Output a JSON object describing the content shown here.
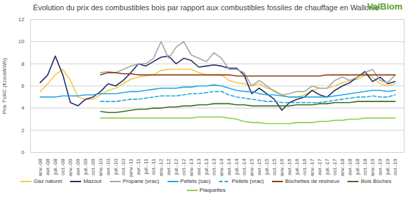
{
  "chart_data": {
    "type": "line",
    "title": "Évolution du prix des combustibles bois par rapport aux combustibles fossiles de chauffage en Wallonie",
    "annotations": [
      "ValBiom"
    ],
    "y_label": "Prix TVAC (€cent/kWh)",
    "categories": [
      "janv.-08",
      "avr.-08",
      "juil.-08",
      "oct.-08",
      "janv.-09",
      "avr.-09",
      "juil.-09",
      "oct.-09",
      "janv.-10",
      "avr.-10",
      "juil.-10",
      "oct.-10",
      "janv.-11",
      "avr.-11",
      "juil.-11",
      "oct.-11",
      "janv.-12",
      "avr.-12",
      "juil.-12",
      "oct.-12",
      "janv.-13",
      "avr.-13",
      "juil.-13",
      "oct.-13",
      "janv.-14",
      "avr.-14",
      "juil.-14",
      "oct.-14",
      "janv.-15",
      "avr.-15",
      "juil.-15",
      "oct.-15",
      "janv.-16",
      "avr.-16",
      "juil.-16",
      "oct.-16",
      "janv.-17",
      "avr.-17",
      "juil.-17",
      "oct.-17",
      "janv.-18",
      "avr.-18",
      "juil.-18",
      "oct.-18",
      "janv.-19",
      "avr.-19",
      "juil.-19",
      "oct.-19"
    ],
    "ylim": [
      0,
      12
    ],
    "yticks": [
      0,
      2,
      4,
      6,
      8,
      10,
      12
    ],
    "grid": true,
    "legend": "bottom",
    "series": [
      {
        "name": "Gaz naturel",
        "color": "#f5c842",
        "line_style": "solid",
        "values": [
          5.5,
          6.2,
          7.0,
          7.5,
          6.5,
          5.0,
          4.8,
          4.8,
          5.2,
          5.6,
          5.8,
          6.2,
          6.6,
          6.8,
          6.9,
          7.0,
          7.4,
          7.5,
          7.5,
          7.5,
          7.5,
          7.2,
          7.0,
          7.0,
          7.0,
          6.5,
          6.3,
          6.2,
          6.0,
          6.2,
          5.8,
          5.6,
          5.2,
          5.0,
          5.0,
          5.2,
          5.6,
          5.8,
          5.8,
          6.0,
          6.3,
          6.5,
          6.6,
          7.0,
          6.8,
          6.2,
          6.0,
          6.2
        ]
      },
      {
        "name": "Mazout",
        "color": "#1f2d6b",
        "line_style": "solid",
        "values": [
          6.3,
          7.0,
          8.7,
          7.0,
          4.5,
          4.2,
          4.8,
          5.0,
          5.5,
          6.2,
          6.0,
          6.5,
          7.2,
          8.0,
          7.8,
          8.2,
          8.6,
          8.7,
          8.0,
          8.5,
          8.3,
          7.7,
          7.8,
          7.9,
          7.8,
          7.6,
          7.6,
          7.0,
          5.3,
          5.8,
          5.3,
          4.8,
          3.8,
          4.5,
          4.8,
          5.0,
          5.6,
          5.2,
          5.0,
          5.6,
          6.0,
          6.3,
          6.8,
          7.3,
          6.4,
          6.8,
          6.2,
          6.4
        ]
      },
      {
        "name": "Propane (vrac)",
        "color": "#a6a6a6",
        "line_style": "solid",
        "values": [
          null,
          null,
          null,
          null,
          null,
          null,
          null,
          null,
          7.2,
          7.3,
          7.2,
          7.5,
          7.8,
          8.0,
          8.0,
          8.5,
          10.0,
          8.5,
          9.5,
          10.0,
          8.8,
          8.5,
          8.2,
          9.0,
          8.5,
          7.5,
          7.5,
          7.2,
          6.0,
          6.5,
          6.0,
          5.5,
          5.2,
          5.3,
          5.5,
          5.5,
          6.0,
          5.8,
          5.8,
          6.5,
          6.8,
          6.5,
          6.8,
          7.2,
          7.5,
          6.5,
          6.3,
          7.0
        ]
      },
      {
        "name": "Pellets (sac)",
        "color": "#1ea7e1",
        "line_style": "solid",
        "values": [
          5.0,
          5.0,
          5.0,
          5.1,
          5.1,
          5.1,
          5.2,
          5.2,
          5.3,
          5.3,
          5.3,
          5.4,
          5.5,
          5.5,
          5.6,
          5.7,
          5.8,
          5.8,
          5.8,
          5.9,
          5.9,
          6.0,
          6.0,
          6.1,
          6.0,
          5.8,
          5.6,
          5.5,
          5.5,
          5.3,
          5.2,
          5.2,
          5.1,
          5.0,
          5.0,
          5.0,
          5.0,
          5.0,
          5.0,
          5.1,
          5.2,
          5.3,
          5.4,
          5.5,
          5.6,
          5.6,
          5.5,
          5.6
        ]
      },
      {
        "name": "Pellets (vrac)",
        "color": "#1ea7e1",
        "line_style": "dashed",
        "values": [
          null,
          null,
          null,
          null,
          null,
          null,
          null,
          null,
          4.6,
          4.6,
          4.6,
          4.7,
          4.8,
          4.8,
          4.9,
          5.0,
          5.1,
          5.1,
          5.1,
          5.2,
          5.3,
          5.3,
          5.4,
          5.5,
          5.5,
          5.2,
          5.0,
          4.9,
          4.8,
          4.7,
          4.6,
          4.6,
          4.5,
          4.5,
          4.5,
          4.5,
          4.5,
          4.5,
          4.6,
          4.7,
          4.8,
          4.9,
          5.0,
          5.0,
          5.1,
          5.0,
          5.0,
          5.2
        ]
      },
      {
        "name": "Bûchettes de résineux",
        "color": "#8b3a0f",
        "line_style": "solid",
        "values": [
          null,
          null,
          null,
          null,
          null,
          null,
          null,
          null,
          7.0,
          7.2,
          7.2,
          7.1,
          7.1,
          7.0,
          7.0,
          7.0,
          7.0,
          7.0,
          7.0,
          7.0,
          7.0,
          7.0,
          7.0,
          7.0,
          7.0,
          7.0,
          6.9,
          6.9,
          6.9,
          6.9,
          6.9,
          6.9,
          6.9,
          6.9,
          6.9,
          6.9,
          6.9,
          6.9,
          7.0,
          7.0,
          7.0,
          7.0,
          7.0,
          7.0,
          7.0,
          7.0,
          7.0,
          7.0
        ]
      },
      {
        "name": "Bois Bûches",
        "color": "#3d6b1f",
        "line_style": "solid",
        "values": [
          null,
          null,
          null,
          null,
          null,
          null,
          null,
          null,
          3.7,
          3.6,
          3.6,
          3.7,
          3.8,
          3.9,
          3.9,
          4.0,
          4.0,
          4.1,
          4.1,
          4.2,
          4.2,
          4.3,
          4.3,
          4.4,
          4.4,
          4.4,
          4.3,
          4.3,
          4.2,
          4.2,
          4.2,
          4.2,
          4.2,
          4.2,
          4.3,
          4.3,
          4.3,
          4.4,
          4.4,
          4.5,
          4.5,
          4.5,
          4.6,
          4.6,
          4.6,
          4.6,
          4.6,
          4.6
        ]
      },
      {
        "name": "Plaquettes",
        "color": "#8fce4a",
        "line_style": "solid",
        "values": [
          null,
          null,
          null,
          null,
          null,
          null,
          null,
          null,
          3.1,
          3.1,
          3.1,
          3.1,
          3.1,
          3.1,
          3.1,
          3.1,
          3.1,
          3.1,
          3.1,
          3.1,
          3.1,
          3.2,
          3.2,
          3.2,
          3.2,
          3.1,
          3.0,
          2.8,
          2.7,
          2.7,
          2.6,
          2.6,
          2.6,
          2.6,
          2.7,
          2.7,
          2.7,
          2.8,
          2.8,
          2.9,
          2.9,
          3.0,
          3.0,
          3.1,
          3.1,
          3.1,
          3.1,
          3.1
        ]
      }
    ]
  }
}
